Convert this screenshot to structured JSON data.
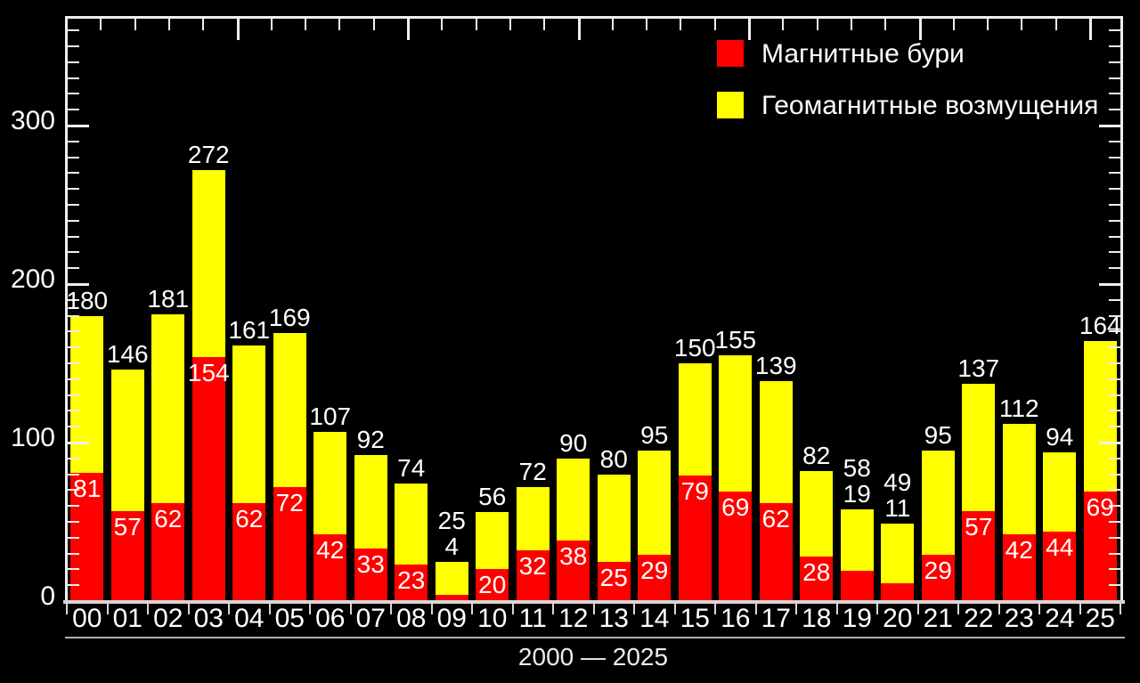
{
  "page": {
    "background": "#000000"
  },
  "legend": {
    "items": [
      {
        "label": "Магнитные бури",
        "color": "#fe0000"
      },
      {
        "label": "Геомагнитные возмущения",
        "color": "#ffff00"
      }
    ]
  },
  "x_axis": {
    "caption": "2000 — 2025"
  },
  "chart_data": {
    "type": "bar",
    "stacked": true,
    "title": "",
    "xlabel": "2000 — 2025",
    "ylabel": "",
    "ylim": [
      0,
      368
    ],
    "y_ticks": [
      0,
      100,
      200,
      300
    ],
    "grid": false,
    "legend_position": "top-right",
    "background": "#000000",
    "axis_color": "#f0efef",
    "text_color": "#ffffff",
    "categories": [
      "00",
      "01",
      "02",
      "03",
      "04",
      "05",
      "06",
      "07",
      "08",
      "09",
      "10",
      "11",
      "12",
      "13",
      "14",
      "15",
      "16",
      "17",
      "18",
      "19",
      "20",
      "21",
      "22",
      "23",
      "24",
      "25"
    ],
    "totals": [
      180,
      146,
      181,
      272,
      161,
      169,
      107,
      92,
      74,
      25,
      56,
      72,
      90,
      80,
      95,
      150,
      155,
      139,
      82,
      58,
      49,
      95,
      137,
      112,
      94,
      164
    ],
    "series": [
      {
        "name": "Магнитные бури",
        "color": "#fe0000",
        "values": [
          81,
          57,
          62,
          154,
          62,
          72,
          42,
          33,
          23,
          4,
          20,
          32,
          38,
          25,
          29,
          79,
          69,
          62,
          28,
          19,
          11,
          29,
          57,
          42,
          44,
          69
        ]
      },
      {
        "name": "Геомагнитные возмущения",
        "color": "#ffff00",
        "values": [
          99,
          89,
          119,
          118,
          99,
          97,
          65,
          59,
          51,
          21,
          36,
          40,
          52,
          55,
          66,
          71,
          86,
          77,
          54,
          39,
          38,
          66,
          80,
          70,
          50,
          95
        ]
      }
    ]
  }
}
